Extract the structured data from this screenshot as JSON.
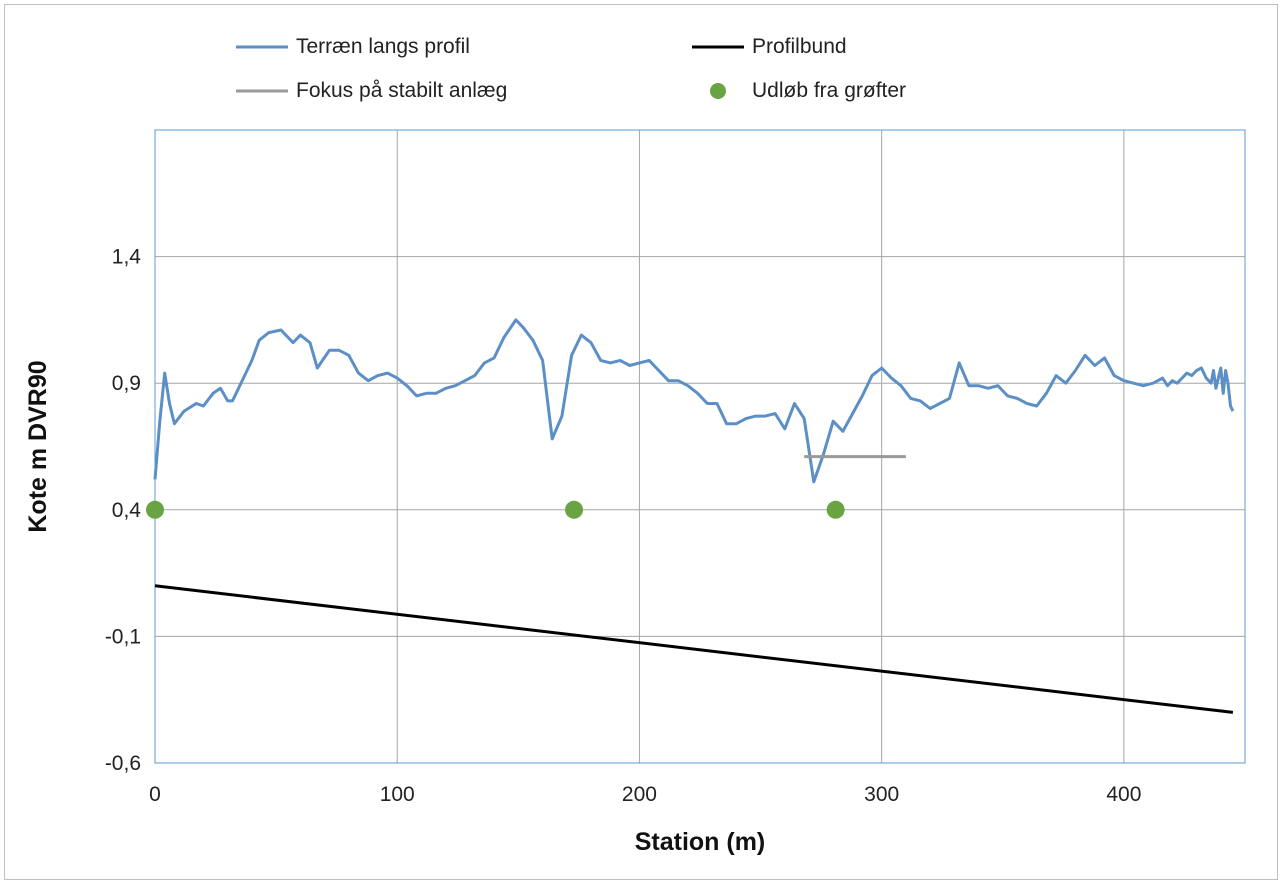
{
  "chart_data": {
    "type": "line",
    "xlabel": "Station (m)",
    "ylabel": "Kote m DVR90",
    "xlim": [
      0,
      450
    ],
    "ylim": [
      -0.6,
      1.9
    ],
    "x_ticks": [
      0,
      100,
      200,
      300,
      400
    ],
    "x_tick_labels": [
      "0",
      "100",
      "200",
      "300",
      "400"
    ],
    "y_ticks": [
      -0.6,
      -0.1,
      0.4,
      0.9,
      1.4
    ],
    "y_tick_labels": [
      "-0,6",
      "-0,1",
      "0,4",
      "0,9",
      "1,4"
    ],
    "grid": true,
    "legend_position": "top",
    "series": [
      {
        "name": "Terræn langs profil",
        "kind": "line",
        "color": "#5b8fc5",
        "x": [
          0,
          2,
          4,
          6,
          8,
          12,
          17,
          20,
          24,
          27,
          30,
          32,
          37,
          40,
          43,
          47,
          52,
          57,
          60,
          64,
          67,
          72,
          76,
          80,
          84,
          88,
          92,
          96,
          100,
          104,
          108,
          112,
          116,
          120,
          124,
          128,
          132,
          136,
          140,
          144,
          149,
          152,
          156,
          160,
          164,
          168,
          172,
          176,
          180,
          184,
          188,
          192,
          196,
          200,
          204,
          208,
          212,
          216,
          220,
          224,
          228,
          232,
          236,
          240,
          244,
          248,
          252,
          256,
          260,
          264,
          268,
          272,
          276,
          280,
          284,
          288,
          292,
          296,
          300,
          304,
          308,
          312,
          316,
          320,
          324,
          328,
          332,
          336,
          340,
          344,
          348,
          352,
          356,
          360,
          364,
          368,
          372,
          376,
          380,
          384,
          388,
          392,
          396,
          400,
          404,
          408,
          412,
          414,
          416,
          418,
          420,
          422,
          424,
          426,
          428,
          430,
          432,
          434,
          436,
          437,
          438,
          440,
          441,
          442,
          443,
          444,
          445
        ],
        "y": [
          0.52,
          0.75,
          0.94,
          0.82,
          0.74,
          0.79,
          0.82,
          0.81,
          0.86,
          0.88,
          0.83,
          0.83,
          0.93,
          0.99,
          1.07,
          1.1,
          1.11,
          1.06,
          1.09,
          1.06,
          0.96,
          1.03,
          1.03,
          1.01,
          0.94,
          0.91,
          0.93,
          0.94,
          0.92,
          0.89,
          0.85,
          0.86,
          0.86,
          0.88,
          0.89,
          0.91,
          0.93,
          0.98,
          1.0,
          1.08,
          1.15,
          1.12,
          1.07,
          0.99,
          0.68,
          0.77,
          1.01,
          1.09,
          1.06,
          0.99,
          0.98,
          0.99,
          0.97,
          0.98,
          0.99,
          0.95,
          0.91,
          0.91,
          0.89,
          0.86,
          0.82,
          0.82,
          0.74,
          0.74,
          0.76,
          0.77,
          0.77,
          0.78,
          0.72,
          0.82,
          0.76,
          0.51,
          0.62,
          0.75,
          0.71,
          0.78,
          0.85,
          0.93,
          0.96,
          0.92,
          0.89,
          0.84,
          0.83,
          0.8,
          0.82,
          0.84,
          0.98,
          0.89,
          0.89,
          0.88,
          0.89,
          0.85,
          0.84,
          0.82,
          0.81,
          0.86,
          0.93,
          0.9,
          0.95,
          1.01,
          0.97,
          1.0,
          0.93,
          0.91,
          0.9,
          0.89,
          0.9,
          0.91,
          0.92,
          0.89,
          0.91,
          0.9,
          0.92,
          0.94,
          0.93,
          0.95,
          0.96,
          0.92,
          0.9,
          0.95,
          0.88,
          0.96,
          0.86,
          0.95,
          0.9,
          0.81,
          0.79
        ]
      },
      {
        "name": "Profilbund",
        "kind": "line",
        "color": "#000000",
        "x": [
          0,
          445
        ],
        "y": [
          0.1,
          -0.4
        ]
      },
      {
        "name": "Fokus på stabilt anlæg",
        "kind": "line",
        "color": "#999999",
        "x": [
          268,
          310
        ],
        "y": [
          0.61,
          0.61
        ]
      },
      {
        "name": "Udløb fra grøfter",
        "kind": "scatter",
        "color": "#6aa342",
        "x": [
          0,
          173,
          281
        ],
        "y": [
          0.4,
          0.4,
          0.4
        ]
      }
    ]
  }
}
